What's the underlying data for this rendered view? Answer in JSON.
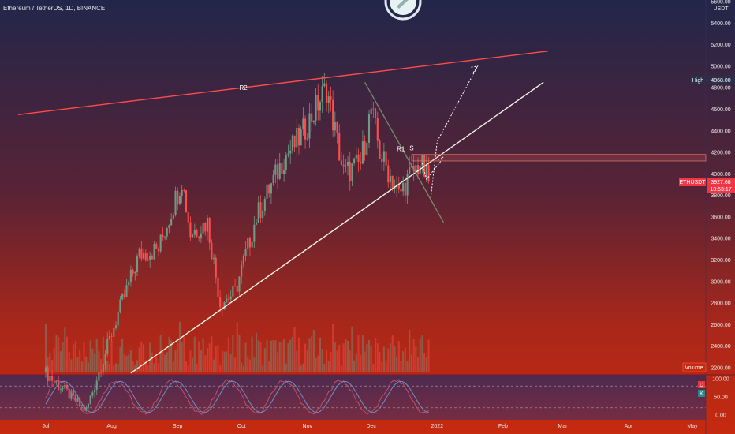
{
  "header": {
    "symbol_name": "Ethereum / TetherUS",
    "interval": "1D",
    "exchange": "BINANCE",
    "separator": ", "
  },
  "price_axis": {
    "unit": "USDT",
    "ticks": [
      "5600.00",
      "5400.00",
      "5200.00",
      "5000.00",
      "4800.00",
      "4600.00",
      "4400.00",
      "4200.00",
      "4000.00",
      "3800.00",
      "3600.00",
      "3400.00",
      "3200.00",
      "3000.00",
      "2800.00",
      "2600.00",
      "2400.00",
      "2200.00"
    ]
  },
  "tags": {
    "high_label": "High",
    "high_value": "4868.00",
    "ticker_label": "ETHUSDT",
    "last_price": "3927.68",
    "countdown": "13:53:17",
    "volume_label": "Volume"
  },
  "oscillator": {
    "ticks": [
      "100.00",
      "50.00",
      "0.00"
    ],
    "legend_d": "D",
    "legend_k": "K"
  },
  "time_axis": {
    "labels": [
      "Jul",
      "Aug",
      "Sep",
      "Oct",
      "Nov",
      "Dec",
      "2022",
      "Feb",
      "Mar",
      "Apr",
      "May"
    ]
  },
  "annotations": {
    "r2": "R2",
    "r1": "R1",
    "s": "S"
  },
  "colors": {
    "up": "#6f9a86",
    "down": "#ff4d4d",
    "resistance_line": "#ff4b4b",
    "support_line": "#f4f4e8",
    "channel_line": "#7a8a6a",
    "last_price_tag": "#f23645",
    "background_top": "#22264a",
    "background_bottom": "#c62a0f"
  },
  "chart_data": {
    "type": "candlestick",
    "symbol": "ETHUSDT",
    "interval": "1D",
    "ylim": [
      2150,
      5700
    ],
    "x_range": [
      "Jul 2021",
      "May 2022"
    ],
    "high": 4868,
    "last": 3927.68,
    "anchors": [
      {
        "date": "2021-07-01",
        "close": 2150
      },
      {
        "date": "2021-07-20",
        "close": 1800
      },
      {
        "date": "2021-08-04",
        "close": 2700
      },
      {
        "date": "2021-08-14",
        "close": 3250
      },
      {
        "date": "2021-08-23",
        "close": 3300
      },
      {
        "date": "2021-09-03",
        "close": 3950
      },
      {
        "date": "2021-09-07",
        "close": 3450
      },
      {
        "date": "2021-09-15",
        "close": 3550
      },
      {
        "date": "2021-09-21",
        "close": 2800
      },
      {
        "date": "2021-09-28",
        "close": 2900
      },
      {
        "date": "2021-10-08",
        "close": 3600
      },
      {
        "date": "2021-10-21",
        "close": 4150
      },
      {
        "date": "2021-10-29",
        "close": 4350
      },
      {
        "date": "2021-11-10",
        "close": 4800
      },
      {
        "date": "2021-11-18",
        "close": 4000
      },
      {
        "date": "2021-11-26",
        "close": 4100
      },
      {
        "date": "2021-12-01",
        "close": 4600
      },
      {
        "date": "2021-12-05",
        "close": 4200
      },
      {
        "date": "2021-12-14",
        "close": 3800
      },
      {
        "date": "2021-12-18",
        "close": 3950
      },
      {
        "date": "2021-12-24",
        "close": 4100
      },
      {
        "date": "2021-12-28",
        "close": 3927.68
      }
    ],
    "resistance_R2": [
      {
        "date": "2021-06-18",
        "price": 4550
      },
      {
        "date": "2022-02-22",
        "price": 5140
      }
    ],
    "trendline_support": [
      {
        "date": "2021-08-10",
        "price": 2150
      },
      {
        "date": "2022-02-20",
        "price": 4850
      }
    ],
    "descending_line": [
      {
        "date": "2021-11-28",
        "price": 4850
      },
      {
        "date": "2022-01-04",
        "price": 3550
      }
    ],
    "resistance_zone": [
      4120,
      4180
    ],
    "oscillator": {
      "name": "Stochastic RSI",
      "levels": [
        80,
        20
      ],
      "ylim": [
        0,
        100
      ]
    }
  }
}
